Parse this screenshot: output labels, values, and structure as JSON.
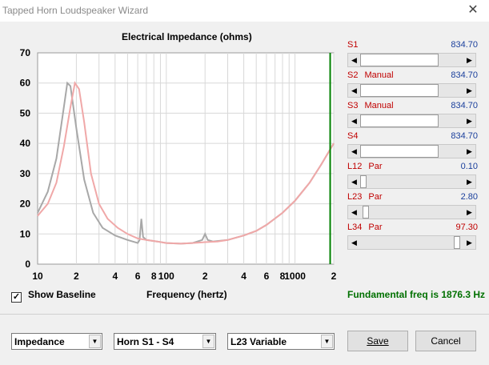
{
  "window": {
    "title": "Tapped Horn Loudspeaker Wizard"
  },
  "chart": {
    "title": "Electrical Impedance (ohms)",
    "xlabel": "Frequency (hertz)"
  },
  "chart_data": {
    "type": "line",
    "title": "Electrical Impedance (ohms)",
    "xlabel": "Frequency (hertz)",
    "ylabel": "",
    "xscale": "log",
    "xlim": [
      10,
      2000
    ],
    "ylim": [
      0,
      70
    ],
    "y_ticks": [
      0,
      10,
      20,
      30,
      40,
      50,
      60,
      70
    ],
    "x_tick_labels": [
      {
        "value": 10,
        "label": "10"
      },
      {
        "value": 20,
        "label": "2"
      },
      {
        "value": 40,
        "label": "4"
      },
      {
        "value": 60,
        "label": "6"
      },
      {
        "value": 80,
        "label": "8"
      },
      {
        "value": 100,
        "label": "100"
      },
      {
        "value": 200,
        "label": "2"
      },
      {
        "value": 400,
        "label": "4"
      },
      {
        "value": 600,
        "label": "6"
      },
      {
        "value": 800,
        "label": "8"
      },
      {
        "value": 1000,
        "label": "1000"
      },
      {
        "value": 2000,
        "label": "2"
      }
    ],
    "grid": true,
    "marker_line": {
      "x": 1876.3,
      "color": "#008000"
    },
    "series": [
      {
        "color": "#a8a8a8",
        "points": [
          [
            10,
            17
          ],
          [
            12,
            24
          ],
          [
            14,
            35
          ],
          [
            16,
            52
          ],
          [
            17,
            60
          ],
          [
            18,
            59
          ],
          [
            20,
            45
          ],
          [
            23,
            28
          ],
          [
            27,
            17
          ],
          [
            32,
            12
          ],
          [
            40,
            9.5
          ],
          [
            50,
            8
          ],
          [
            60,
            7
          ],
          [
            62,
            8
          ],
          [
            64,
            15
          ],
          [
            66,
            9
          ],
          [
            70,
            8
          ],
          [
            85,
            7.5
          ],
          [
            100,
            7
          ],
          [
            130,
            6.8
          ],
          [
            160,
            7
          ],
          [
            190,
            8
          ],
          [
            200,
            10
          ],
          [
            210,
            8
          ],
          [
            230,
            7.5
          ],
          [
            300,
            8
          ],
          [
            400,
            9.5
          ],
          [
            500,
            11
          ],
          [
            600,
            13
          ],
          [
            800,
            17
          ],
          [
            1000,
            21
          ],
          [
            1300,
            27
          ],
          [
            1600,
            33
          ],
          [
            2000,
            40
          ]
        ]
      },
      {
        "color": "#f0a8a8",
        "points": [
          [
            10,
            16
          ],
          [
            12,
            20
          ],
          [
            14,
            27
          ],
          [
            16,
            39
          ],
          [
            18,
            52
          ],
          [
            19.5,
            60
          ],
          [
            21,
            58
          ],
          [
            23,
            47
          ],
          [
            26,
            30
          ],
          [
            30,
            20
          ],
          [
            35,
            15
          ],
          [
            42,
            12
          ],
          [
            50,
            10
          ],
          [
            60,
            8.5
          ],
          [
            70,
            8
          ],
          [
            85,
            7.5
          ],
          [
            100,
            7
          ],
          [
            130,
            6.8
          ],
          [
            160,
            7
          ],
          [
            200,
            7.3
          ],
          [
            250,
            7.5
          ],
          [
            300,
            8
          ],
          [
            400,
            9.5
          ],
          [
            500,
            11
          ],
          [
            600,
            13
          ],
          [
            800,
            17
          ],
          [
            1000,
            21
          ],
          [
            1300,
            27
          ],
          [
            1600,
            33
          ],
          [
            2000,
            40
          ]
        ]
      }
    ]
  },
  "sliders": [
    {
      "label": "S1",
      "mode": "",
      "value": "834.70",
      "value_color": "blue",
      "position": 0.82
    },
    {
      "label": "S2",
      "mode": "Manual",
      "value": "834.70",
      "value_color": "blue",
      "position": 0.82
    },
    {
      "label": "S3",
      "mode": "Manual",
      "value": "834.70",
      "value_color": "blue",
      "position": 0.82
    },
    {
      "label": "S4",
      "mode": "",
      "value": "834.70",
      "value_color": "blue",
      "position": 0.82
    },
    {
      "label": "L12",
      "mode": "Par",
      "value": "0.10",
      "value_color": "blue",
      "position": 0.0
    },
    {
      "label": "L23",
      "mode": "Par",
      "value": "2.80",
      "value_color": "blue",
      "position": 0.02
    },
    {
      "label": "L34",
      "mode": "Par",
      "value": "97.30",
      "value_color": "red",
      "position": 0.97
    }
  ],
  "options": {
    "show_baseline_label": "Show Baseline",
    "show_baseline_checked": true,
    "fundamental_text": "Fundamental freq is 1876.3 Hz"
  },
  "bottom": {
    "combo1": "Impedance",
    "combo2": "Horn S1 - S4",
    "combo3": "L23 Variable",
    "save_label": "Save",
    "cancel_label": "Cancel"
  },
  "colors": {
    "label_red": "#c00000",
    "value_blue": "#1a3f9c",
    "fund_green": "#007000"
  }
}
